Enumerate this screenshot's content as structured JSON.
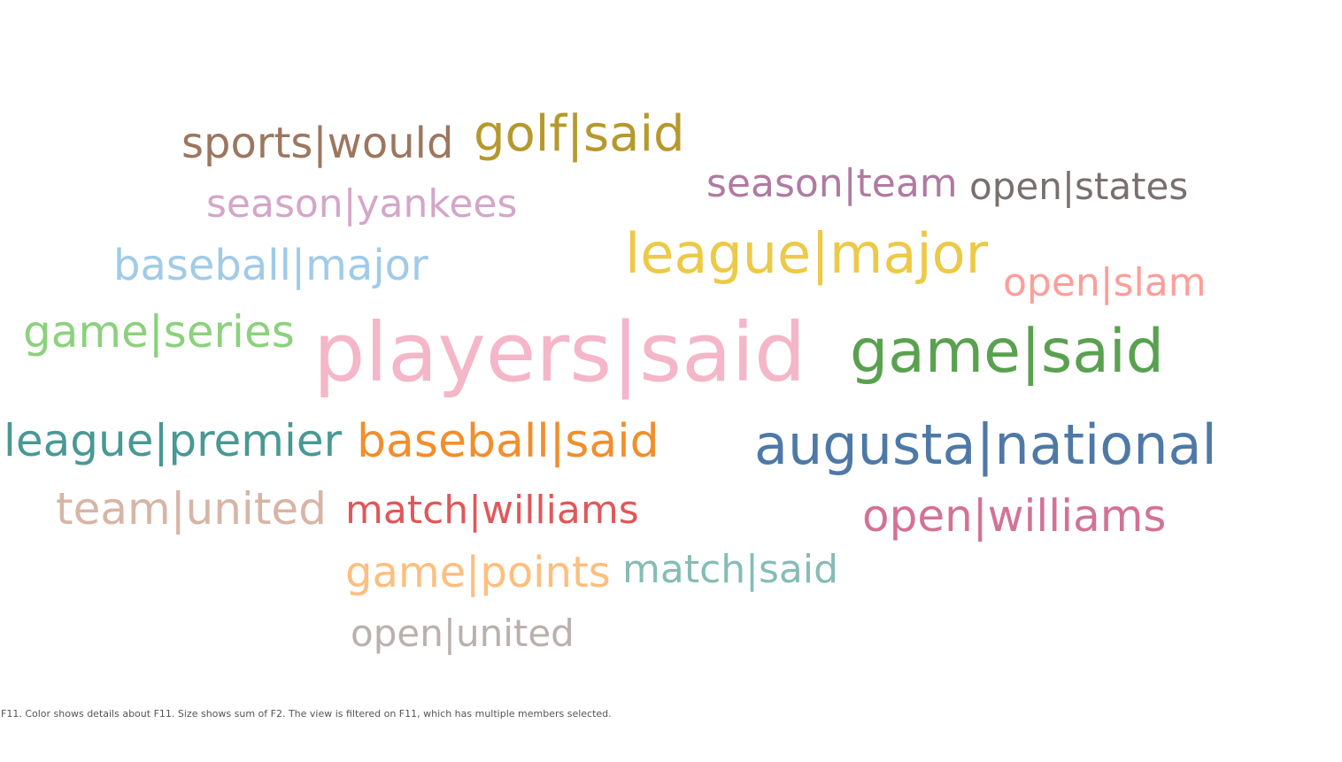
{
  "chart_data": {
    "type": "wordcloud",
    "words": [
      {
        "text": "players|said",
        "color": "#f4b6c8"
      },
      {
        "text": "game|said",
        "color": "#59a14f"
      },
      {
        "text": "augusta|national",
        "color": "#4e79a7"
      },
      {
        "text": "league|major",
        "color": "#edc948"
      },
      {
        "text": "golf|said",
        "color": "#b6992d"
      },
      {
        "text": "baseball|said",
        "color": "#f28e2b"
      },
      {
        "text": "league|premier",
        "color": "#499894"
      },
      {
        "text": "open|williams",
        "color": "#d37295"
      },
      {
        "text": "game|series",
        "color": "#8cd17d"
      },
      {
        "text": "team|united",
        "color": "#d7b5a6"
      },
      {
        "text": "match|williams",
        "color": "#e15759"
      },
      {
        "text": "game|points",
        "color": "#ffbe7d"
      },
      {
        "text": "baseball|major",
        "color": "#a0cbe8"
      },
      {
        "text": "sports|would",
        "color": "#9d7660"
      },
      {
        "text": "season|team",
        "color": "#b07aa1"
      },
      {
        "text": "match|said",
        "color": "#86bcb6"
      },
      {
        "text": "open|slam",
        "color": "#ff9d9a"
      },
      {
        "text": "season|yankees",
        "color": "#d4a6c8"
      },
      {
        "text": "open|states",
        "color": "#79706e"
      },
      {
        "text": "open|united",
        "color": "#bab0ac"
      }
    ]
  },
  "caption": "F11.  Color shows details about F11.  Size shows sum of F2. The view is filtered on F11, which has multiple members selected."
}
